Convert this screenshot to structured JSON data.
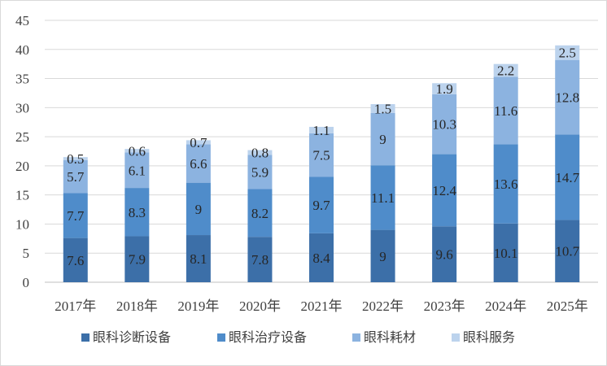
{
  "chart_data": {
    "type": "bar",
    "stacked": true,
    "categories": [
      "2017年",
      "2018年",
      "2019年",
      "2020年",
      "2021年",
      "2022年",
      "2023年",
      "2024年",
      "2025年"
    ],
    "series": [
      {
        "name": "眼科诊断设备",
        "color": "#3c6fa8",
        "values": [
          7.6,
          7.9,
          8.1,
          7.8,
          8.4,
          9,
          9.6,
          10.1,
          10.7
        ]
      },
      {
        "name": "眼科治疗设备",
        "color": "#4f8cca",
        "values": [
          7.7,
          8.3,
          9,
          8.2,
          9.7,
          11.1,
          12.4,
          13.6,
          14.7
        ]
      },
      {
        "name": "眼科耗材",
        "color": "#8cb3e0",
        "values": [
          5.7,
          6.1,
          6.6,
          5.9,
          7.5,
          9,
          10.3,
          11.6,
          12.8
        ]
      },
      {
        "name": "眼科服务",
        "color": "#bcd3ed",
        "values": [
          0.5,
          0.6,
          0.7,
          0.8,
          1.1,
          1.5,
          1.9,
          2.2,
          2.5
        ]
      }
    ],
    "y_ticks": [
      "0",
      "5",
      "10",
      "15",
      "20",
      "25",
      "30",
      "35",
      "40",
      "45"
    ],
    "ylim": [
      0,
      45
    ],
    "grid": true,
    "legend_position": "bottom",
    "title": "",
    "xlabel": "",
    "ylabel": ""
  }
}
